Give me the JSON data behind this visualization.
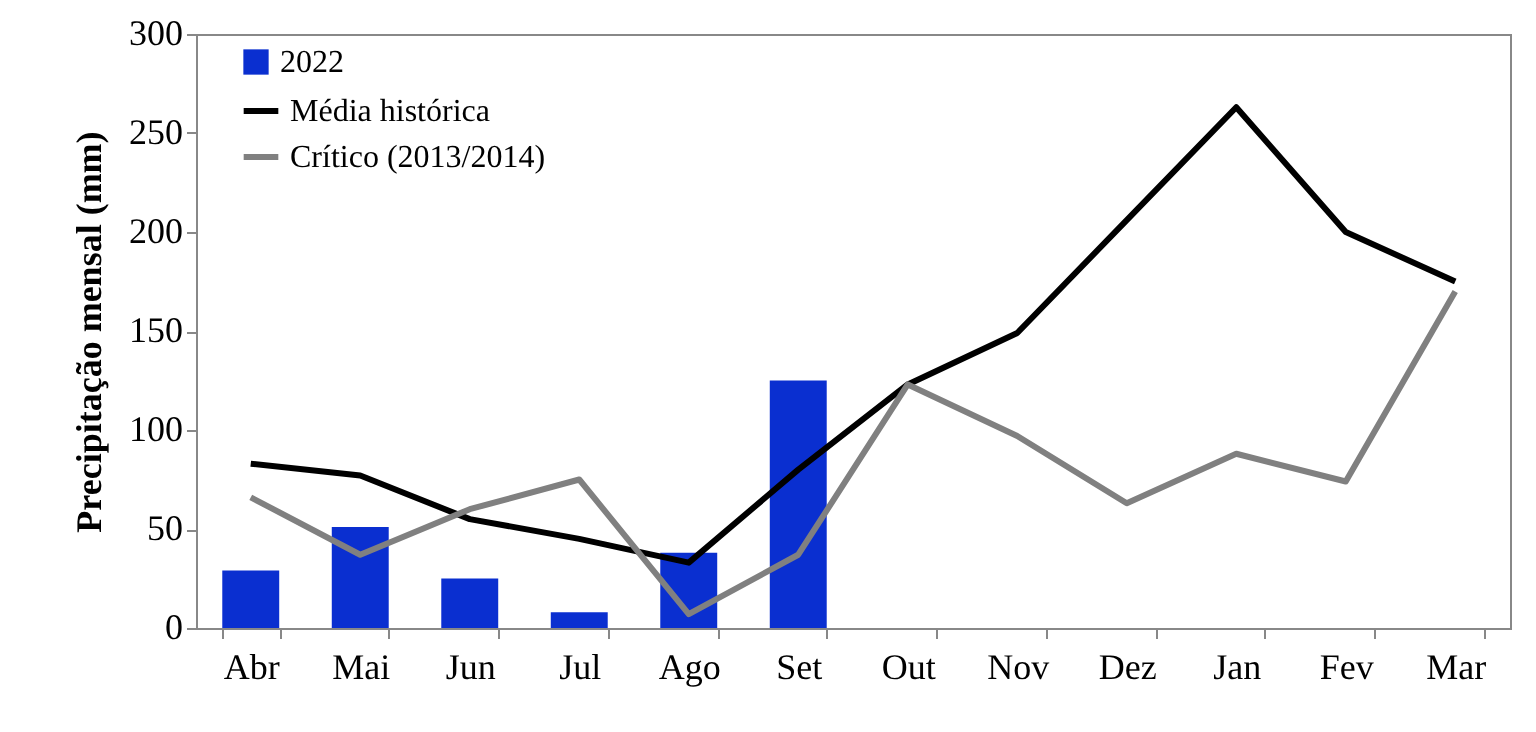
{
  "chart_data": {
    "type": "bar",
    "ylabel": "Precipitação mensal (mm)",
    "categories": [
      "Abr",
      "Mai",
      "Jun",
      "Jul",
      "Ago",
      "Set",
      "Out",
      "Nov",
      "Dez",
      "Jan",
      "Fev",
      "Mar"
    ],
    "series": [
      {
        "name": "2022",
        "color": "#0a2fd0",
        "values": [
          29,
          51,
          25,
          8,
          38,
          125,
          null,
          null,
          null,
          null,
          null,
          null
        ]
      },
      {
        "name": "Média histórica",
        "type": "line",
        "color": "#000000",
        "values": [
          83,
          77,
          55,
          45,
          33,
          80,
          123,
          149,
          206,
          263,
          200,
          175
        ]
      },
      {
        "name": "Crítico (2013/2014)",
        "type": "line",
        "color": "#808080",
        "values": [
          66,
          37,
          60,
          75,
          7,
          37,
          123,
          97,
          63,
          88,
          74,
          170
        ]
      }
    ],
    "ylim": [
      0,
      300
    ],
    "yticks": [
      0,
      50,
      100,
      150,
      200,
      250,
      300
    ],
    "grid": false,
    "legend": "top left",
    "marker": "none",
    "line_style": "solid"
  }
}
